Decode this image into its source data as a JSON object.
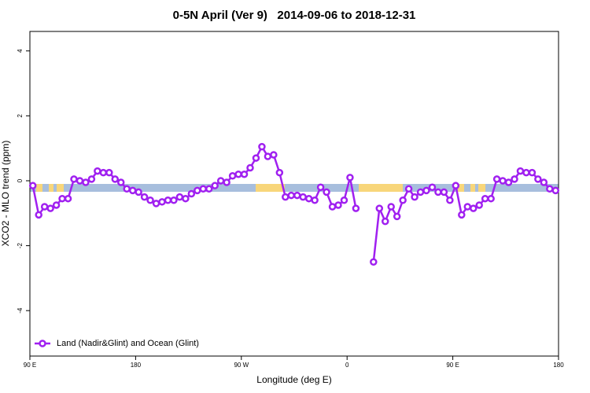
{
  "chart_data": {
    "type": "line",
    "title": "0-5N April (Ver 9)   2014-09-06 to 2018-12-31",
    "x_label": "Longitude (deg E)",
    "y_label": "XCO2 - MLO trend (ppm)",
    "x": [
      92.5,
      97.5,
      102.5,
      107.5,
      112.5,
      117.5,
      122.5,
      127.5,
      132.5,
      137.5,
      142.5,
      147.5,
      152.5,
      157.5,
      162.5,
      167.5,
      172.5,
      177.5,
      182.5,
      187.5,
      192.5,
      197.5,
      202.5,
      207.5,
      212.5,
      217.5,
      222.5,
      227.5,
      232.5,
      237.5,
      242.5,
      247.5,
      252.5,
      257.5,
      262.5,
      267.5,
      272.5,
      277.5,
      282.5,
      287.5,
      292.5,
      297.5,
      302.5,
      307.5,
      312.5,
      317.5,
      322.5,
      327.5,
      332.5,
      337.5,
      342.5,
      347.5,
      352.5,
      357.5,
      362.5,
      367.5,
      372.5,
      377.5,
      382.5,
      387.5,
      392.5,
      397.5,
      402.5,
      407.5,
      412.5,
      417.5,
      422.5,
      427.5,
      432.5,
      437.5,
      442.5,
      447.5,
      452.5,
      457.5,
      462.5,
      467.5,
      472.5,
      477.5,
      482.5,
      487.5,
      492.5,
      497.5,
      502.5,
      507.5,
      512.5,
      517.5,
      522.5,
      527.5,
      532.5,
      537.5
    ],
    "series": [
      {
        "name": "Land (Nadir&Glint) and Ocean (Glint)",
        "color": "#a020f0",
        "values": [
          -0.15,
          -1.05,
          -0.8,
          -0.85,
          -0.75,
          -0.55,
          -0.55,
          0.05,
          0,
          -0.05,
          0.05,
          0.3,
          0.25,
          0.25,
          0.05,
          -0.05,
          -0.25,
          -0.3,
          -0.35,
          -0.5,
          -0.6,
          -0.7,
          -0.65,
          -0.6,
          -0.6,
          -0.5,
          -0.55,
          -0.4,
          -0.3,
          -0.25,
          -0.25,
          -0.15,
          0,
          -0.05,
          0.15,
          0.2,
          0.2,
          0.4,
          0.7,
          1.05,
          0.75,
          0.8,
          0.25,
          -0.5,
          -0.45,
          -0.45,
          -0.5,
          -0.55,
          -0.6,
          -0.2,
          -0.35,
          -0.8,
          -0.75,
          -0.6,
          0.1,
          -0.85,
          null,
          null,
          -2.5,
          -0.85,
          -1.25,
          -0.8,
          -1.1,
          -0.6,
          -0.25,
          -0.5,
          -0.35,
          -0.3,
          -0.2,
          -0.35,
          -0.35,
          -0.6,
          -0.15,
          -1.05,
          -0.8,
          -0.85,
          -0.75,
          -0.55,
          -0.55,
          0.05,
          0,
          -0.05,
          0.05,
          0.3,
          0.25,
          0.25,
          0.05,
          -0.05,
          -0.25,
          -0.3
        ]
      }
    ],
    "xlim": [
      90,
      540
    ],
    "xticks": [
      {
        "value": 90,
        "label": "90 E"
      },
      180,
      {
        "value": 270,
        "label": "90 W"
      },
      {
        "value": 360,
        "label": "0"
      },
      {
        "value": 450,
        "label": "90 E"
      },
      {
        "value": 540,
        "label": "180"
      }
    ],
    "ylim": [
      -5.4,
      4.6
    ],
    "yticks": [
      -4,
      -2,
      0,
      2,
      4
    ],
    "legend": "bottom-left"
  }
}
